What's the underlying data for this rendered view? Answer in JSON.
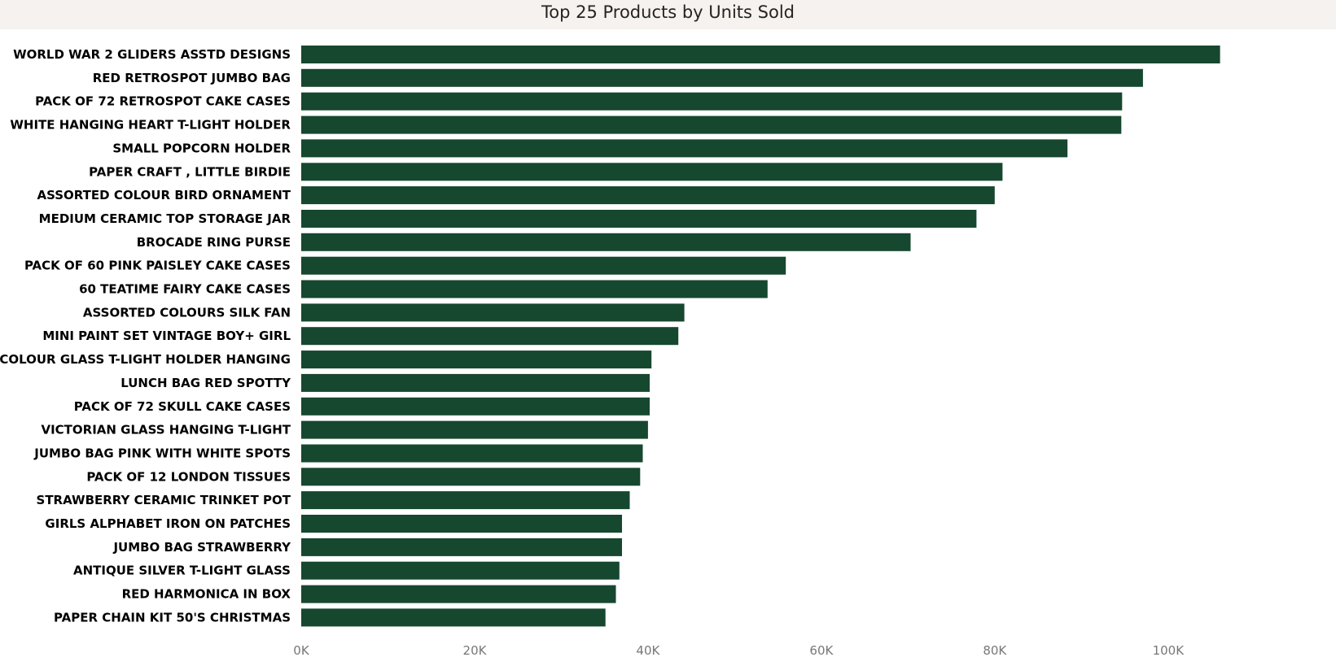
{
  "colors": {
    "bar": "#16472f",
    "title_background": "#f5f2ef",
    "title_text": "#252423",
    "category_label": "#000000",
    "tick_label": "#777777"
  },
  "chart_data": {
    "type": "bar",
    "orientation": "horizontal",
    "title": "Top 25 Products by Units Sold",
    "xlabel": "",
    "ylabel": "",
    "xlim": [
      0,
      110000
    ],
    "x_ticks": [
      0,
      20000,
      40000,
      60000,
      80000,
      100000
    ],
    "x_tick_labels": [
      "0K",
      "20K",
      "40K",
      "60K",
      "80K",
      "100K"
    ],
    "grid": false,
    "legend": "none",
    "categories": [
      "WORLD WAR 2 GLIDERS ASSTD DESIGNS",
      "RED RETROSPOT JUMBO BAG",
      "PACK OF 72 RETROSPOT CAKE CASES",
      "WHITE HANGING HEART T-LIGHT HOLDER",
      "SMALL POPCORN HOLDER",
      "PAPER CRAFT , LITTLE BIRDIE",
      "ASSORTED COLOUR BIRD ORNAMENT",
      "MEDIUM CERAMIC TOP STORAGE JAR",
      "BROCADE RING PURSE",
      "PACK OF 60 PINK PAISLEY CAKE CASES",
      "60 TEATIME FAIRY CAKE CASES",
      "ASSORTED COLOURS SILK FAN",
      "MINI PAINT SET VINTAGE BOY+ GIRL",
      "COLOUR GLASS T-LIGHT HOLDER HANGING",
      "LUNCH BAG RED SPOTTY",
      "PACK OF 72 SKULL CAKE CASES",
      "VICTORIAN GLASS HANGING T-LIGHT",
      "JUMBO BAG PINK WITH WHITE SPOTS",
      "PACK OF 12 LONDON TISSUES",
      "STRAWBERRY CERAMIC TRINKET POT",
      "GIRLS ALPHABET IRON ON PATCHES",
      "JUMBO BAG STRAWBERRY",
      "ANTIQUE SILVER T-LIGHT GLASS",
      "RED HARMONICA IN BOX",
      "PAPER CHAIN KIT 50'S CHRISTMAS"
    ],
    "values": [
      106000,
      97100,
      94700,
      94600,
      88400,
      80900,
      80000,
      77900,
      70300,
      55900,
      53800,
      44200,
      43500,
      40400,
      40200,
      40200,
      40000,
      39400,
      39100,
      37900,
      37000,
      37000,
      36700,
      36300,
      35100
    ]
  }
}
